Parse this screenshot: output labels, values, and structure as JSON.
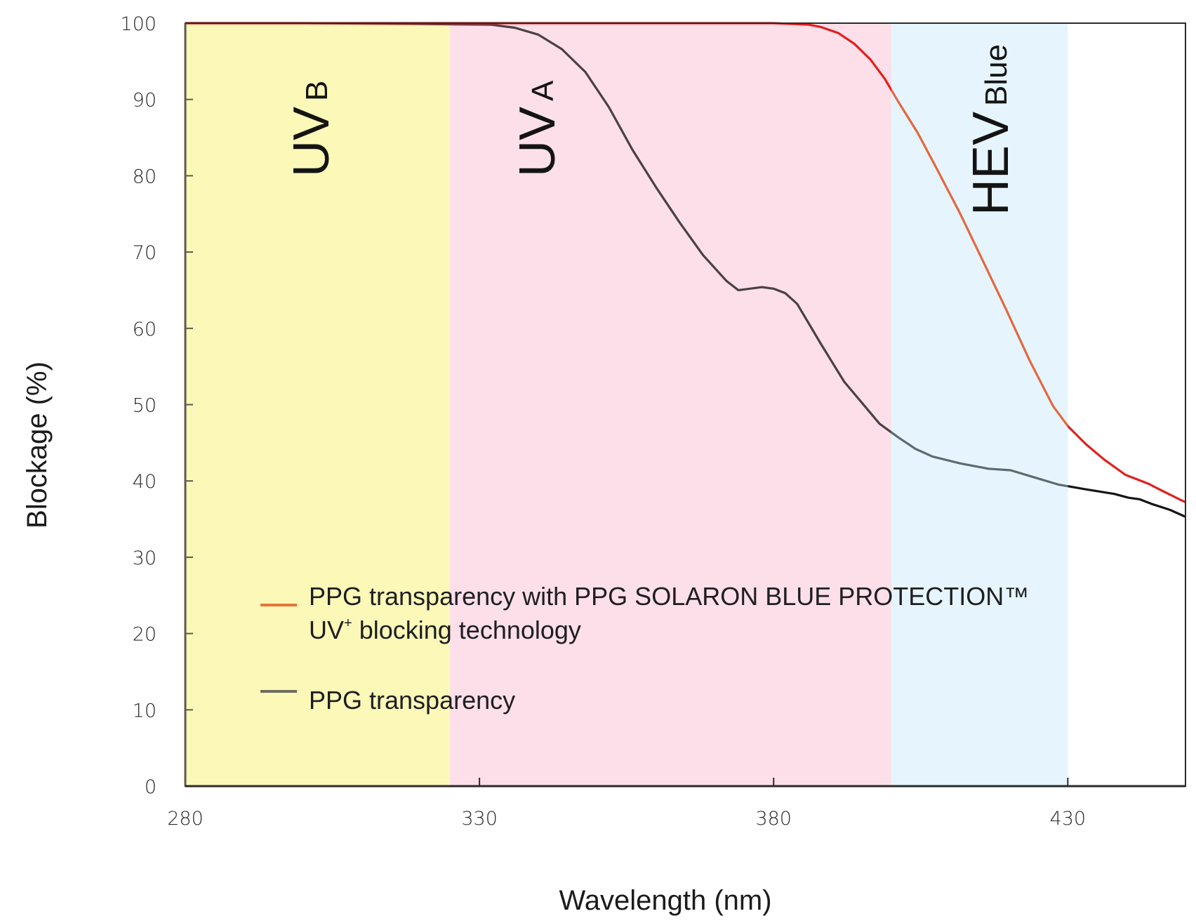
{
  "chart_data": {
    "type": "line",
    "title": "",
    "xlabel": "Wavelength (nm)",
    "ylabel": "Blockage (%)",
    "xlim": [
      280,
      450
    ],
    "ylim": [
      0,
      100
    ],
    "x_ticks": [
      280,
      330,
      380,
      430
    ],
    "y_ticks": [
      0,
      10,
      20,
      30,
      40,
      50,
      60,
      70,
      80,
      90,
      100
    ],
    "grid": false,
    "legend_position": "center-left",
    "bands": [
      {
        "name": "UVB",
        "label_main": "UV",
        "label_sub": "B",
        "x_range": [
          280,
          325
        ],
        "color": "#fcf8b8"
      },
      {
        "name": "UVA",
        "label_main": "UV",
        "label_sub": "A",
        "x_range": [
          325,
          400
        ],
        "color": "#fcdfe8"
      },
      {
        "name": "HEV Blue",
        "label_main": "HEV",
        "label_sub": "Blue",
        "x_range": [
          400,
          430
        ],
        "color": "#e6f5fd"
      }
    ],
    "series": [
      {
        "name": "PPG transparency with PPG SOLARON BLUE PROTECTION™ UV⁺ blocking technology",
        "legend_line1": "PPG transparency with PPG SOLARON BLUE PROTECTION™",
        "legend_line2_main": "UV",
        "legend_line2_sup": "+",
        "legend_line2_rest": " blocking technology",
        "color": "#e0201e",
        "band_color": "#e5673f",
        "legend_color": "#e8743a",
        "x": [
          280,
          300,
          320,
          340,
          360,
          380,
          386,
          388,
          391,
          393.7,
          396.5,
          398.9,
          401.2,
          404.5,
          407.6,
          411.6,
          415.6,
          419.5,
          423.5,
          427.5,
          430.1,
          433.1,
          436.2,
          439.8,
          443.8,
          445.8,
          450
        ],
        "y": [
          100,
          100,
          100,
          100,
          100,
          100,
          99.8,
          99.5,
          98.7,
          97.3,
          95.2,
          92.7,
          89.7,
          85.6,
          81.1,
          75.2,
          68.8,
          62.5,
          55.8,
          49.8,
          47.1,
          44.8,
          42.8,
          40.8,
          39.6,
          38.8,
          37.2
        ]
      },
      {
        "name": "PPG transparency",
        "legend_label": "PPG transparency",
        "color": "#4a4046",
        "band_color": "#5e6a70",
        "after_color": "#151515",
        "legend_color": "#6e6e5e",
        "x": [
          280,
          300,
          320,
          332,
          336,
          340,
          344,
          348,
          352,
          356,
          360,
          364,
          368,
          372,
          374,
          378,
          380,
          382,
          384,
          388,
          392,
          398,
          401.2,
          404.1,
          407,
          411.7,
          416.5,
          420.3,
          424.2,
          428.5,
          430.1,
          433.1,
          437.9,
          440.3,
          442.2,
          444.2,
          447.4,
          450
        ],
        "y": [
          100,
          100,
          99.9,
          99.8,
          99.4,
          98.5,
          96.6,
          93.6,
          89.0,
          83.4,
          78.5,
          73.9,
          69.6,
          66.2,
          65.0,
          65.4,
          65.2,
          64.6,
          63.2,
          58.0,
          53.0,
          47.5,
          45.7,
          44.2,
          43.2,
          42.3,
          41.6,
          41.4,
          40.5,
          39.5,
          39.3,
          38.9,
          38.3,
          37.8,
          37.6,
          37.0,
          36.2,
          35.3
        ]
      }
    ]
  }
}
